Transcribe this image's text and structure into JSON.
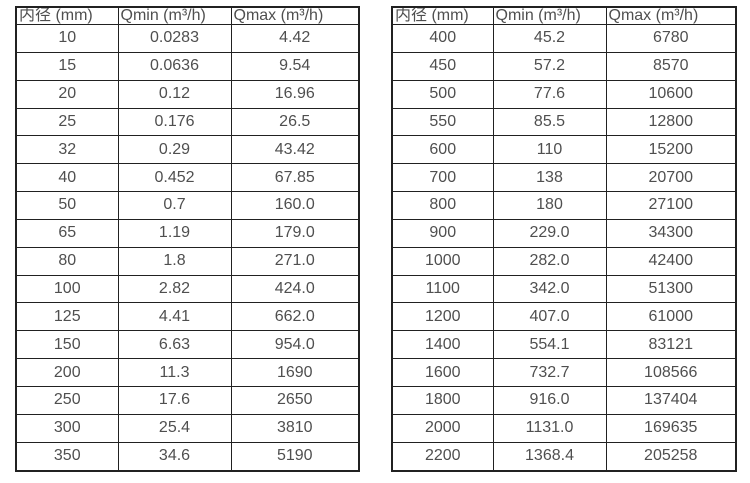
{
  "left_table": {
    "headers": [
      "内径 (mm)",
      "Qmin (m³/h)",
      "Qmax (m³/h)"
    ],
    "rows": [
      [
        "10",
        "0.0283",
        "4.42"
      ],
      [
        "15",
        "0.0636",
        "9.54"
      ],
      [
        "20",
        "0.12",
        "16.96"
      ],
      [
        "25",
        "0.176",
        "26.5"
      ],
      [
        "32",
        "0.29",
        "43.42"
      ],
      [
        "40",
        "0.452",
        "67.85"
      ],
      [
        "50",
        "0.7",
        "160.0"
      ],
      [
        "65",
        "1.19",
        "179.0"
      ],
      [
        "80",
        "1.8",
        "271.0"
      ],
      [
        "100",
        "2.82",
        "424.0"
      ],
      [
        "125",
        "4.41",
        "662.0"
      ],
      [
        "150",
        "6.63",
        "954.0"
      ],
      [
        "200",
        "11.3",
        "1690"
      ],
      [
        "250",
        "17.6",
        "2650"
      ],
      [
        "300",
        "25.4",
        "3810"
      ],
      [
        "350",
        "34.6",
        "5190"
      ]
    ]
  },
  "right_table": {
    "headers": [
      "内径 (mm)",
      "Qmin (m³/h)",
      "Qmax (m³/h)"
    ],
    "rows": [
      [
        "400",
        "45.2",
        "6780"
      ],
      [
        "450",
        "57.2",
        "8570"
      ],
      [
        "500",
        "77.6",
        "10600"
      ],
      [
        "550",
        "85.5",
        "12800"
      ],
      [
        "600",
        "110",
        "15200"
      ],
      [
        "700",
        "138",
        "20700"
      ],
      [
        "800",
        "180",
        "27100"
      ],
      [
        "900",
        "229.0",
        "34300"
      ],
      [
        "1000",
        "282.0",
        "42400"
      ],
      [
        "1100",
        "342.0",
        "51300"
      ],
      [
        "1200",
        "407.0",
        "61000"
      ],
      [
        "1400",
        "554.1",
        "83121"
      ],
      [
        "1600",
        "732.7",
        "108566"
      ],
      [
        "1800",
        "916.0",
        "137404"
      ],
      [
        "2000",
        "1131.0",
        "169635"
      ],
      [
        "2200",
        "1368.4",
        "205258"
      ]
    ]
  },
  "colors": {
    "border": "#212121",
    "text": "#4f4f4f",
    "background": "#ffffff"
  }
}
